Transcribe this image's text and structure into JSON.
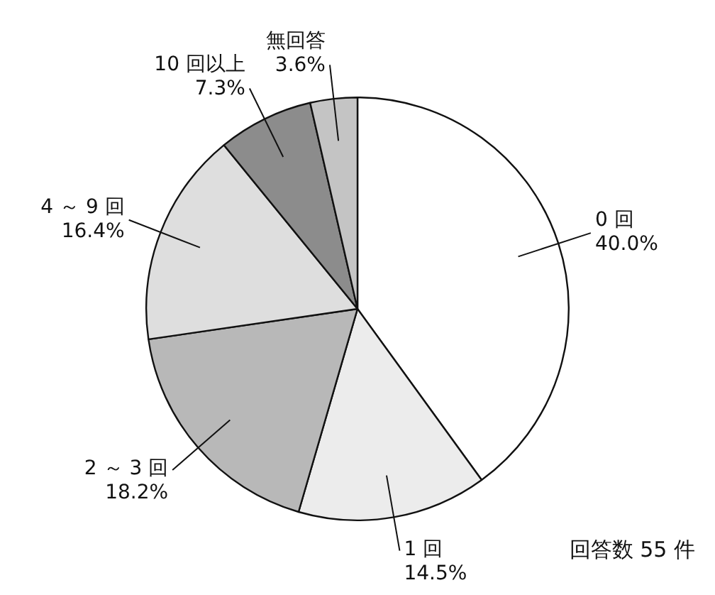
{
  "chart_data": {
    "type": "pie",
    "categories": [
      "0 回",
      "1 回",
      "2 ～ 3 回",
      "4 ～ 9 回",
      "10 回以上",
      "無回答"
    ],
    "values": [
      40.0,
      14.5,
      18.2,
      16.4,
      7.3,
      3.6
    ],
    "value_labels": [
      "40.0%",
      "14.5%",
      "18.2%",
      "16.4%",
      "7.3%",
      "3.6%"
    ],
    "colors": [
      "#ffffff",
      "#ececec",
      "#b8b8b8",
      "#dedede",
      "#8c8c8c",
      "#c4c4c4"
    ],
    "legend": false,
    "annotations": [
      "回答数 55 件"
    ]
  }
}
